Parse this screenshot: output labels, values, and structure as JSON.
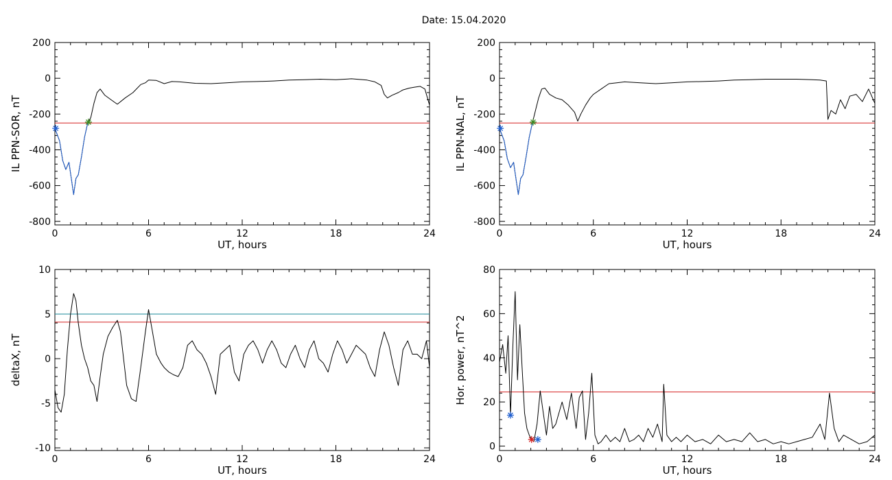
{
  "figure_title": "Date:  15.04.2020",
  "colors": {
    "trace": "#000000",
    "threshold_red": "#d42020",
    "threshold_teal": "#1a8a9a",
    "highlight_blue": "#1f5fd0",
    "star_green": "#3a8a20",
    "star_blue": "#1f5fd0",
    "star_red": "#d42020"
  },
  "chart_data": [
    {
      "type": "line",
      "panel": "top-left",
      "xlabel": "UT, hours",
      "ylabel": "IL PPN-SOR, nT",
      "xlim": [
        0,
        24
      ],
      "ylim": [
        -820,
        200
      ],
      "xticks": [
        0,
        6,
        12,
        18,
        24
      ],
      "yticks": [
        200,
        0,
        -200,
        -400,
        -600,
        -800
      ],
      "threshold": -250,
      "series": [
        {
          "color": "black",
          "x": [
            0,
            0.3,
            0.5,
            0.7,
            0.9,
            1.05,
            1.2,
            1.35,
            1.5,
            1.7,
            1.9,
            2.1,
            2.3,
            2.5,
            2.7,
            2.9,
            3.2,
            3.6,
            4.0,
            4.5,
            5.0,
            5.5,
            5.8,
            6.0,
            6.5,
            7.0,
            7.5,
            8.0,
            9,
            10,
            11,
            12,
            13,
            14,
            15,
            16,
            17,
            18,
            19,
            20,
            20.5,
            20.9,
            21.1,
            21.3,
            21.6,
            22.0,
            22.3,
            22.7,
            23.0,
            23.4,
            23.7,
            24
          ],
          "y": [
            -280,
            -350,
            -460,
            -510,
            -470,
            -560,
            -650,
            -560,
            -540,
            -440,
            -330,
            -250,
            -220,
            -140,
            -80,
            -60,
            -95,
            -120,
            -145,
            -110,
            -80,
            -35,
            -25,
            -10,
            -12,
            -30,
            -18,
            -20,
            -28,
            -30,
            -25,
            -20,
            -18,
            -15,
            -10,
            -8,
            -5,
            -8,
            -3,
            -10,
            -20,
            -40,
            -90,
            -110,
            -95,
            -80,
            -65,
            -55,
            -50,
            -45,
            -60,
            -150
          ]
        },
        {
          "color": "blue",
          "x": [
            0,
            0.3,
            0.5,
            0.7,
            0.9,
            1.05,
            1.2,
            1.35,
            1.5,
            1.7,
            1.9,
            2.1
          ],
          "y": [
            -280,
            -350,
            -460,
            -510,
            -470,
            -560,
            -650,
            -560,
            -540,
            -440,
            -330,
            -250
          ]
        }
      ],
      "markers": [
        {
          "x": 2.15,
          "y": -245,
          "shape": "asterisk",
          "color": "green"
        },
        {
          "x": 0.05,
          "y": -280,
          "shape": "asterisk",
          "color": "blue"
        }
      ]
    },
    {
      "type": "line",
      "panel": "top-right",
      "xlabel": "UT, hours",
      "ylabel": "IL PPN-NAL, nT",
      "xlim": [
        0,
        24
      ],
      "ylim": [
        -820,
        200
      ],
      "xticks": [
        0,
        6,
        12,
        18,
        24
      ],
      "yticks": [
        200,
        0,
        -200,
        -400,
        -600,
        -800
      ],
      "threshold": -250,
      "series": [
        {
          "color": "black",
          "x": [
            0,
            0.3,
            0.5,
            0.7,
            0.9,
            1.05,
            1.2,
            1.35,
            1.5,
            1.7,
            1.9,
            2.1,
            2.3,
            2.5,
            2.7,
            2.9,
            3.2,
            3.6,
            4.0,
            4.4,
            4.8,
            5.0,
            5.2,
            5.5,
            5.8,
            6.0,
            6.5,
            7.0,
            7.5,
            8.0,
            9,
            10,
            11,
            12,
            13,
            14,
            15,
            16,
            17,
            18,
            19,
            20,
            20.5,
            20.9,
            21.0,
            21.2,
            21.5,
            21.8,
            22.1,
            22.4,
            22.8,
            23.2,
            23.6,
            24
          ],
          "y": [
            -280,
            -350,
            -450,
            -500,
            -470,
            -560,
            -650,
            -560,
            -540,
            -440,
            -330,
            -250,
            -180,
            -110,
            -60,
            -55,
            -90,
            -110,
            -120,
            -150,
            -190,
            -240,
            -200,
            -150,
            -110,
            -90,
            -60,
            -30,
            -25,
            -20,
            -25,
            -30,
            -25,
            -20,
            -18,
            -15,
            -10,
            -8,
            -5,
            -5,
            -5,
            -8,
            -10,
            -15,
            -230,
            -180,
            -200,
            -120,
            -170,
            -100,
            -90,
            -130,
            -60,
            -140
          ]
        },
        {
          "color": "blue",
          "x": [
            0,
            0.3,
            0.5,
            0.7,
            0.9,
            1.05,
            1.2,
            1.35,
            1.5,
            1.7,
            1.9,
            2.1
          ],
          "y": [
            -280,
            -350,
            -450,
            -500,
            -470,
            -560,
            -650,
            -560,
            -540,
            -440,
            -330,
            -250
          ]
        }
      ],
      "markers": [
        {
          "x": 2.15,
          "y": -245,
          "shape": "asterisk",
          "color": "green"
        },
        {
          "x": 0.05,
          "y": -280,
          "shape": "asterisk",
          "color": "blue"
        }
      ]
    },
    {
      "type": "line",
      "panel": "bottom-left",
      "xlabel": "UT, hours",
      "ylabel": "deltaX, nT",
      "xlim": [
        0,
        24
      ],
      "ylim": [
        -10.3,
        10
      ],
      "xticks": [
        0,
        6,
        12,
        18,
        24
      ],
      "yticks": [
        10,
        5,
        0,
        -5,
        -10
      ],
      "threshold": 4.1,
      "threshold2": 5.0,
      "series": [
        {
          "color": "black",
          "x": [
            0,
            0.2,
            0.4,
            0.6,
            0.8,
            1.0,
            1.2,
            1.35,
            1.5,
            1.7,
            1.9,
            2.1,
            2.3,
            2.5,
            2.7,
            2.9,
            3.1,
            3.4,
            3.7,
            4.0,
            4.2,
            4.4,
            4.6,
            4.9,
            5.2,
            5.5,
            5.8,
            6.0,
            6.2,
            6.5,
            6.8,
            7.0,
            7.3,
            7.6,
            7.9,
            8.2,
            8.5,
            8.8,
            9.1,
            9.4,
            9.7,
            10.0,
            10.3,
            10.6,
            10.9,
            11.2,
            11.5,
            11.8,
            12.1,
            12.4,
            12.7,
            13.0,
            13.3,
            13.6,
            13.9,
            14.2,
            14.5,
            14.8,
            15.1,
            15.4,
            15.7,
            16.0,
            16.3,
            16.6,
            16.9,
            17.2,
            17.5,
            17.8,
            18.1,
            18.4,
            18.7,
            19.0,
            19.3,
            19.6,
            19.9,
            20.2,
            20.5,
            20.8,
            21.1,
            21.4,
            21.7,
            22.0,
            22.3,
            22.6,
            22.9,
            23.2,
            23.5,
            23.8,
            24
          ],
          "y": [
            -3.5,
            -5.5,
            -6.0,
            -4.0,
            1.0,
            5.0,
            7.3,
            6.5,
            4.0,
            1.5,
            0.0,
            -1.0,
            -2.5,
            -3.0,
            -4.8,
            -2.0,
            0.5,
            2.5,
            3.5,
            4.3,
            3.0,
            0.0,
            -3.0,
            -4.5,
            -4.8,
            -1.0,
            3.0,
            5.5,
            3.5,
            0.5,
            -0.5,
            -1.0,
            -1.5,
            -1.8,
            -2.0,
            -1.0,
            1.5,
            2.0,
            1.0,
            0.5,
            -0.5,
            -2.0,
            -4.0,
            0.5,
            1.0,
            1.5,
            -1.5,
            -2.5,
            0.5,
            1.5,
            2.0,
            1.0,
            -0.5,
            1.0,
            2.0,
            1.0,
            -0.5,
            -1.0,
            0.5,
            1.5,
            0.0,
            -1.0,
            1.0,
            2.0,
            0.0,
            -0.5,
            -1.5,
            0.5,
            2.0,
            1.0,
            -0.5,
            0.5,
            1.5,
            1.0,
            0.5,
            -1.0,
            -2.0,
            1.0,
            3.0,
            1.5,
            -1.0,
            -3.0,
            1.0,
            2.0,
            0.5,
            0.5,
            0.0,
            2.0,
            -1.0
          ]
        }
      ],
      "markers": []
    },
    {
      "type": "line",
      "panel": "bottom-right",
      "xlabel": "UT, hours",
      "ylabel": "Hor. power, nT^2",
      "xlim": [
        0,
        24
      ],
      "ylim": [
        -2,
        80
      ],
      "xticks": [
        0,
        6,
        12,
        18,
        24
      ],
      "yticks": [
        80,
        60,
        40,
        20,
        0
      ],
      "threshold": 24.5,
      "series": [
        {
          "color": "black",
          "x": [
            0,
            0.2,
            0.4,
            0.55,
            0.7,
            0.85,
            1.0,
            1.15,
            1.3,
            1.45,
            1.6,
            1.75,
            1.9,
            2.05,
            2.2,
            2.4,
            2.6,
            2.8,
            3.0,
            3.2,
            3.4,
            3.6,
            3.8,
            4.0,
            4.3,
            4.6,
            4.9,
            5.1,
            5.3,
            5.5,
            5.7,
            5.9,
            6.1,
            6.3,
            6.5,
            6.8,
            7.1,
            7.4,
            7.7,
            8.0,
            8.3,
            8.6,
            8.9,
            9.2,
            9.5,
            9.8,
            10.1,
            10.4,
            10.5,
            10.7,
            11.0,
            11.3,
            11.6,
            12.0,
            12.5,
            13.0,
            13.5,
            14.0,
            14.5,
            15.0,
            15.5,
            16.0,
            16.5,
            17.0,
            17.5,
            18.0,
            18.5,
            19.0,
            19.5,
            20.0,
            20.5,
            20.8,
            21.1,
            21.4,
            21.7,
            22.0,
            22.5,
            23.0,
            23.5,
            24
          ],
          "y": [
            38,
            46,
            33,
            50,
            14,
            45,
            70,
            30,
            55,
            35,
            15,
            8,
            5,
            3,
            2,
            10,
            25,
            15,
            5,
            18,
            8,
            10,
            15,
            20,
            12,
            24,
            8,
            22,
            25,
            3,
            15,
            33,
            5,
            1,
            2,
            5,
            2,
            4,
            2,
            8,
            2,
            3,
            5,
            2,
            8,
            4,
            10,
            2,
            28,
            5,
            2,
            4,
            2,
            5,
            2,
            3,
            1,
            5,
            2,
            3,
            2,
            6,
            2,
            3,
            1,
            2,
            1,
            2,
            3,
            4,
            10,
            3,
            24,
            8,
            2,
            5,
            3,
            1,
            2,
            5
          ]
        }
      ],
      "markers": [
        {
          "x": 0.7,
          "y": 14,
          "shape": "asterisk",
          "color": "blue"
        },
        {
          "x": 2.05,
          "y": 3,
          "shape": "asterisk",
          "color": "red"
        },
        {
          "x": 2.45,
          "y": 3,
          "shape": "asterisk",
          "color": "blue"
        }
      ]
    }
  ]
}
